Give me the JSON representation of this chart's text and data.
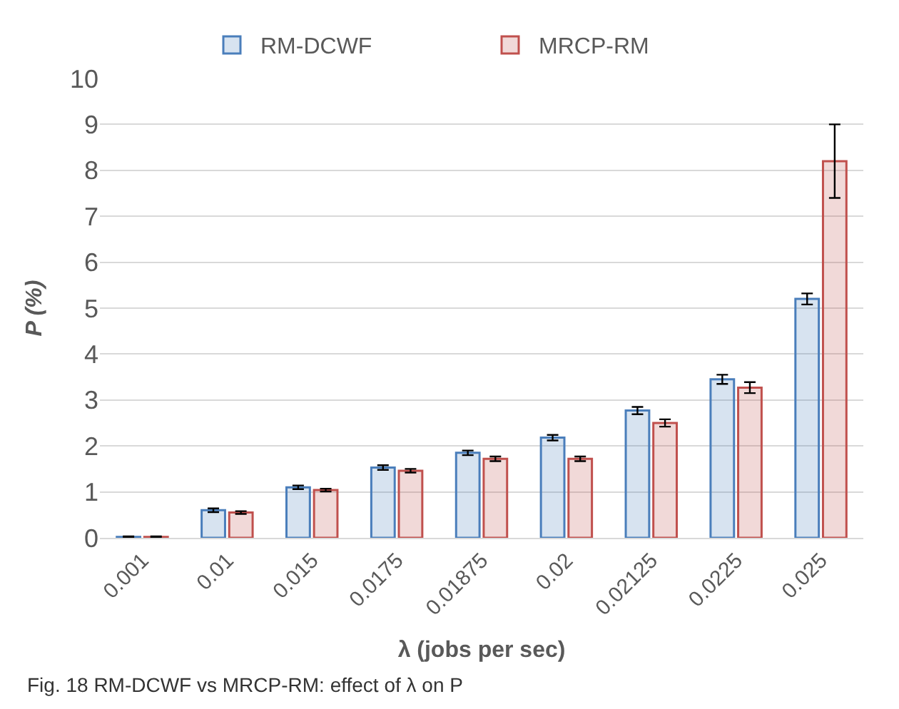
{
  "chart_data": {
    "type": "bar",
    "categories": [
      "0.001",
      "0.01",
      "0.015",
      "0.0175",
      "0.01875",
      "0.02",
      "0.02125",
      "0.0225",
      "0.025"
    ],
    "series": [
      {
        "name": "RM-DCWF",
        "color": "#4a7ebb",
        "values": [
          0.02,
          0.6,
          1.1,
          1.53,
          1.85,
          2.18,
          2.77,
          3.45,
          5.2
        ],
        "errors": [
          0.01,
          0.04,
          0.04,
          0.05,
          0.05,
          0.06,
          0.08,
          0.1,
          0.12
        ]
      },
      {
        "name": "MRCP-RM",
        "color": "#c0504d",
        "values": [
          0.02,
          0.55,
          1.04,
          1.46,
          1.72,
          1.72,
          2.5,
          3.27,
          8.2
        ],
        "errors": [
          0.01,
          0.03,
          0.03,
          0.04,
          0.05,
          0.05,
          0.08,
          0.12,
          0.8
        ]
      }
    ],
    "ylim": [
      0,
      10
    ],
    "yticks": [
      0,
      1,
      2,
      3,
      4,
      5,
      6,
      7,
      8,
      9,
      10
    ],
    "grid": "y",
    "legend": "top",
    "xlabel": "λ (jobs per sec)",
    "ylabel": "P (%)",
    "annotations": [
      "Fig. 18 RM-DCWF vs MRCP-RM: effect of λ on P"
    ]
  }
}
